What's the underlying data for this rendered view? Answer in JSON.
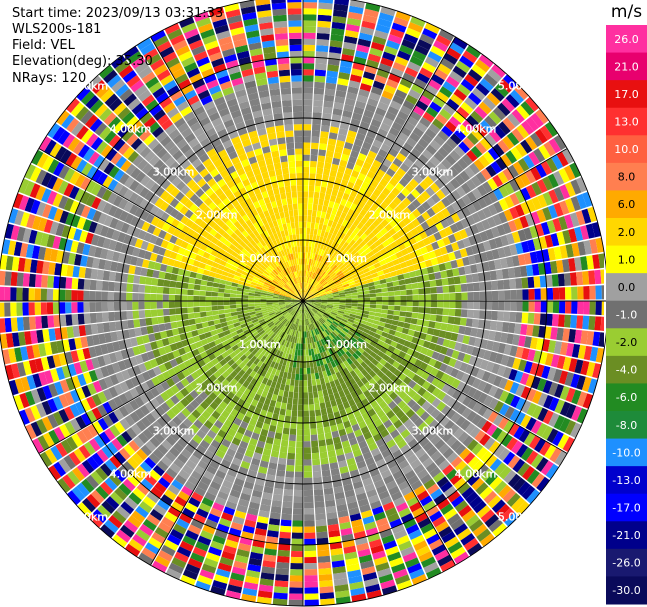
{
  "info": {
    "start_time": "Start time: 2023/09/13 03:31:33",
    "instrument": "WLS200s-181",
    "field": "Field: VEL",
    "elevation": "Elevation(deg): 35.30",
    "nrays": "NRays: 120"
  },
  "colorbar": {
    "unit": "m/s",
    "ticks": [
      "26.0",
      "21.0",
      "17.0",
      "13.0",
      "10.0",
      "8.0",
      "6.0",
      "2.0",
      "1.0",
      "0.0",
      "-1.0",
      "-2.0",
      "-4.0",
      "-6.0",
      "-8.0",
      "-10.0",
      "-13.0",
      "-17.0",
      "-21.0",
      "-26.0",
      "-30.0"
    ],
    "colors": [
      "#ff2fa0",
      "#e8006e",
      "#e81010",
      "#ff3030",
      "#ff6040",
      "#ff7f50",
      "#ffaa00",
      "#ffd700",
      "#ffff00",
      "#a0a0a0",
      "#707070",
      "#9acd32",
      "#6b8e23",
      "#228b22",
      "#1e8b3a",
      "#1e90ff",
      "#0000cd",
      "#0000ff",
      "#00008b",
      "#191970",
      "#0a0a5a"
    ]
  },
  "chart_data": {
    "type": "heatmap",
    "projection": "polar PPI",
    "field": "VEL",
    "units": "m/s",
    "n_rays": 120,
    "range_rings_labels": [
      "1.00km",
      "2.00km",
      "3.00km",
      "4.00km",
      "5.00km"
    ],
    "range_rings_km": [
      1,
      2,
      3,
      4,
      5
    ],
    "max_range_km": 5.0,
    "spokes_deg": [
      0,
      30,
      60,
      90,
      120,
      150,
      180,
      210,
      240,
      270,
      300,
      330
    ],
    "regions": [
      {
        "range_km": [
          0,
          2.6
        ],
        "azimuth_deg": [
          285,
          75
        ],
        "value_ms": 2.0
      },
      {
        "range_km": [
          0,
          2.6
        ],
        "azimuth_deg": [
          75,
          285
        ],
        "value_ms": -2.0
      },
      {
        "range_km": [
          1.0,
          2.0
        ],
        "azimuth_deg": [
          110,
          200
        ],
        "value_ms": -6.0
      },
      {
        "range_km": [
          2.6,
          3.6
        ],
        "azimuth_deg": [
          0,
          360
        ],
        "value_ms": -1.0
      },
      {
        "range_km": [
          3.6,
          5.0
        ],
        "azimuth_deg": [
          0,
          360
        ],
        "value_ms": "noise"
      }
    ]
  }
}
